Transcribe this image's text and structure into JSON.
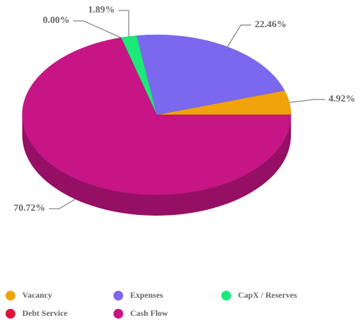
{
  "chart_data": {
    "type": "pie",
    "categories": [
      "Vacancy",
      "Expenses",
      "CapX / Reserves",
      "Debt Service",
      "Cash Flow"
    ],
    "values": [
      4.92,
      22.46,
      1.89,
      0,
      70.72
    ],
    "value_labels": [
      "4.92%",
      "22.46%",
      "1.89%",
      "0.00%",
      "70.72%"
    ],
    "colors": [
      "#f0a30a",
      "#7b68ee",
      "#1de87a",
      "#dc143c",
      "#c71585"
    ],
    "legend": "bottom"
  }
}
